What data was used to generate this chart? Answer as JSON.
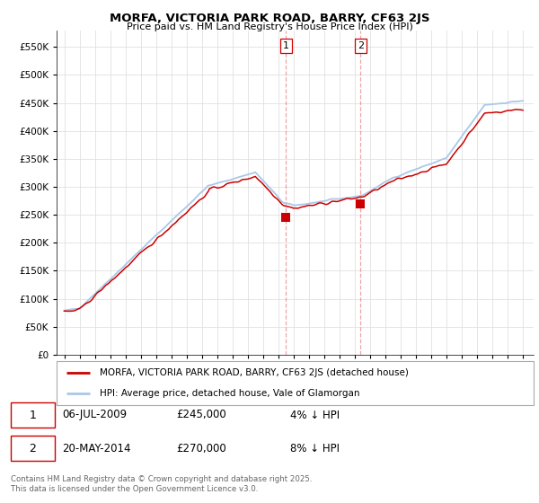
{
  "title": "MORFA, VICTORIA PARK ROAD, BARRY, CF63 2JS",
  "subtitle": "Price paid vs. HM Land Registry's House Price Index (HPI)",
  "ytick_values": [
    0,
    50000,
    100000,
    150000,
    200000,
    250000,
    300000,
    350000,
    400000,
    450000,
    500000,
    550000
  ],
  "ylim": [
    0,
    580000
  ],
  "xlim_start": 1994.5,
  "xlim_end": 2025.7,
  "sale1_date": 2009.51,
  "sale1_price": 245000,
  "sale2_date": 2014.38,
  "sale2_price": 270000,
  "hpi_line_color": "#aac8e8",
  "price_line_color": "#cc0000",
  "sale_marker_color": "#cc0000",
  "vline_color": "#cc0000",
  "vline_alpha": 0.35,
  "grid_color": "#e0e0e0",
  "legend_label_price": "MORFA, VICTORIA PARK ROAD, BARRY, CF63 2JS (detached house)",
  "legend_label_hpi": "HPI: Average price, detached house, Vale of Glamorgan",
  "table_row1": [
    "1",
    "06-JUL-2009",
    "£245,000",
    "4% ↓ HPI"
  ],
  "table_row2": [
    "2",
    "20-MAY-2014",
    "£270,000",
    "8% ↓ HPI"
  ],
  "footnote": "Contains HM Land Registry data © Crown copyright and database right 2025.\nThis data is licensed under the Open Government Licence v3.0.",
  "background_color": "#ffffff"
}
